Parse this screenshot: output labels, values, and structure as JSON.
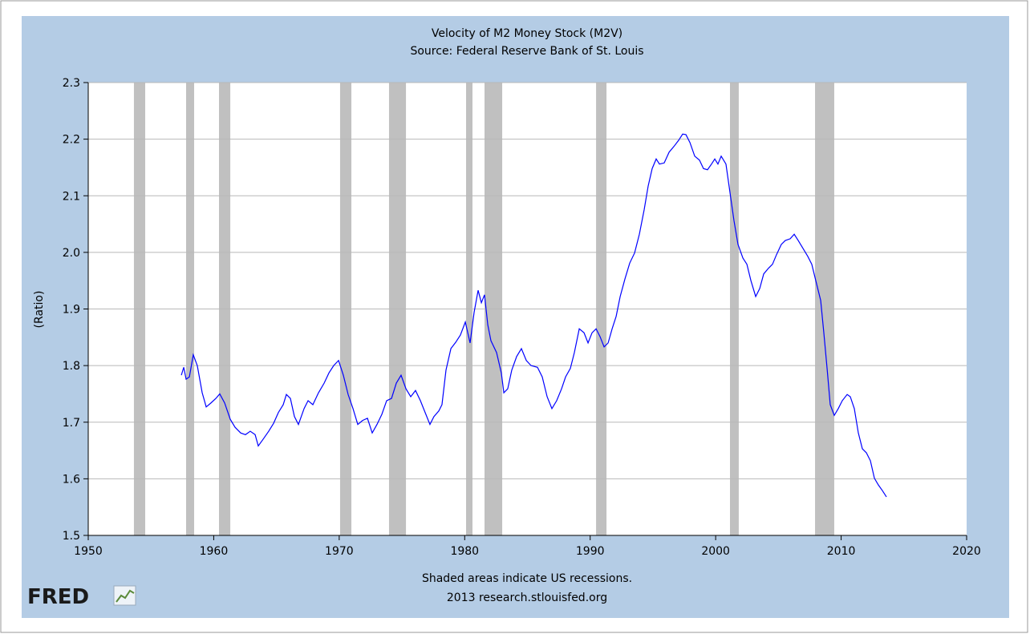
{
  "chart_data": {
    "type": "line",
    "title": "Velocity of M2 Money Stock (M2V)",
    "subtitle": "Source: Federal Reserve Bank of St. Louis",
    "y_label": "(Ratio)",
    "note": "Shaded areas indicate US recessions.",
    "credit": "2013 research.stlouisfed.org",
    "logo": "FRED",
    "xlim": [
      1950,
      2020
    ],
    "xticks": [
      1950,
      1960,
      1970,
      1980,
      1990,
      2000,
      2010,
      2020
    ],
    "ylim": [
      1.5,
      2.3
    ],
    "yticks": [
      1.5,
      1.6,
      1.7,
      1.8,
      1.9,
      {
        "value": 2,
        "label": "2.0"
      },
      2.1,
      2.2,
      2.3
    ],
    "grid": true,
    "recession_color": "#c0c0c0",
    "recessions": [
      [
        1953.64,
        1954.54
      ],
      [
        1957.8,
        1958.44
      ],
      [
        1960.42,
        1961.32
      ],
      [
        1970.07,
        1970.97
      ],
      [
        1973.97,
        1975.32
      ],
      [
        1980.11,
        1980.62
      ],
      [
        1981.58,
        1982.99
      ],
      [
        1990.47,
        1991.3
      ],
      [
        2001.14,
        2001.84
      ],
      [
        2007.92,
        2009.45
      ]
    ],
    "x": [
      1957.42,
      1957.61,
      1957.8,
      1958.06,
      1958.37,
      1958.69,
      1959.08,
      1959.4,
      1959.78,
      1960.17,
      1960.48,
      1960.87,
      1961.32,
      1961.7,
      1962.15,
      1962.53,
      1962.91,
      1963.3,
      1963.55,
      1963.94,
      1964.38,
      1964.77,
      1965.15,
      1965.54,
      1965.79,
      1966.11,
      1966.43,
      1966.75,
      1967.2,
      1967.52,
      1967.9,
      1968.35,
      1968.8,
      1969.18,
      1969.56,
      1969.95,
      1970.33,
      1970.71,
      1971.1,
      1971.48,
      1971.86,
      1972.25,
      1972.63,
      1973.01,
      1973.4,
      1973.78,
      1974.17,
      1974.55,
      1974.93,
      1975.32,
      1975.7,
      1976.08,
      1976.47,
      1976.85,
      1977.23,
      1977.55,
      1977.94,
      1978.19,
      1978.51,
      1978.9,
      1979.28,
      1979.66,
      1980.05,
      1980.43,
      1980.75,
      1981.07,
      1981.33,
      1981.58,
      1981.84,
      1982.09,
      1982.54,
      1982.92,
      1983.12,
      1983.43,
      1983.75,
      1984.14,
      1984.52,
      1984.91,
      1985.29,
      1985.8,
      1986.18,
      1986.57,
      1986.95,
      1987.33,
      1987.72,
      1988.04,
      1988.42,
      1988.74,
      1989.13,
      1989.51,
      1989.83,
      1990.15,
      1990.47,
      1990.79,
      1991.11,
      1991.43,
      1991.75,
      1992.07,
      1992.39,
      1992.77,
      1993.15,
      1993.54,
      1993.92,
      1994.3,
      1994.62,
      1994.94,
      1995.26,
      1995.52,
      1995.9,
      1996.29,
      1996.67,
      1997.05,
      1997.37,
      1997.63,
      1997.95,
      1998.33,
      1998.71,
      1999.03,
      1999.35,
      1999.67,
      1999.93,
      2000.18,
      2000.44,
      2000.82,
      2001.14,
      2001.46,
      2001.78,
      2002.17,
      2002.49,
      2002.81,
      2003.19,
      2003.51,
      2003.83,
      2004.21,
      2004.53,
      2004.85,
      2005.23,
      2005.55,
      2005.94,
      2006.26,
      2006.58,
      2006.96,
      2007.34,
      2007.66,
      2007.98,
      2008.37,
      2008.62,
      2008.88,
      2009.13,
      2009.45,
      2009.77,
      2010.09,
      2010.48,
      2010.73,
      2011.05,
      2011.37,
      2011.69,
      2012.01,
      2012.33,
      2012.65,
      2012.97,
      2013.29,
      2013.61
    ],
    "series": [
      {
        "name": "M2V",
        "color": "#0000ff",
        "values": [
          1.783,
          1.797,
          1.776,
          1.78,
          1.819,
          1.8,
          1.752,
          1.727,
          1.734,
          1.742,
          1.75,
          1.734,
          1.705,
          1.691,
          1.681,
          1.678,
          1.684,
          1.678,
          1.658,
          1.67,
          1.684,
          1.698,
          1.717,
          1.731,
          1.749,
          1.742,
          1.71,
          1.696,
          1.724,
          1.738,
          1.731,
          1.752,
          1.769,
          1.787,
          1.8,
          1.809,
          1.783,
          1.749,
          1.724,
          1.696,
          1.703,
          1.707,
          1.681,
          1.696,
          1.714,
          1.738,
          1.742,
          1.769,
          1.783,
          1.759,
          1.745,
          1.756,
          1.738,
          1.717,
          1.696,
          1.71,
          1.72,
          1.731,
          1.792,
          1.83,
          1.841,
          1.854,
          1.877,
          1.84,
          1.894,
          1.933,
          1.911,
          1.925,
          1.872,
          1.844,
          1.823,
          1.787,
          1.752,
          1.759,
          1.792,
          1.816,
          1.83,
          1.809,
          1.8,
          1.797,
          1.78,
          1.745,
          1.724,
          1.738,
          1.759,
          1.78,
          1.795,
          1.823,
          1.865,
          1.858,
          1.84,
          1.858,
          1.865,
          1.851,
          1.833,
          1.84,
          1.865,
          1.887,
          1.922,
          1.953,
          1.981,
          1.999,
          2.032,
          2.075,
          2.117,
          2.148,
          2.165,
          2.156,
          2.158,
          2.177,
          2.187,
          2.198,
          2.209,
          2.208,
          2.194,
          2.17,
          2.163,
          2.148,
          2.146,
          2.156,
          2.165,
          2.156,
          2.17,
          2.156,
          2.106,
          2.056,
          2.014,
          1.99,
          1.979,
          1.95,
          1.922,
          1.936,
          1.962,
          1.972,
          1.979,
          1.996,
          2.014,
          2.021,
          2.024,
          2.032,
          2.021,
          2.007,
          1.993,
          1.979,
          1.95,
          1.915,
          1.858,
          1.795,
          1.731,
          1.712,
          1.724,
          1.738,
          1.749,
          1.745,
          1.724,
          1.681,
          1.653,
          1.646,
          1.632,
          1.601,
          1.589,
          1.579,
          1.568
        ]
      }
    ]
  }
}
